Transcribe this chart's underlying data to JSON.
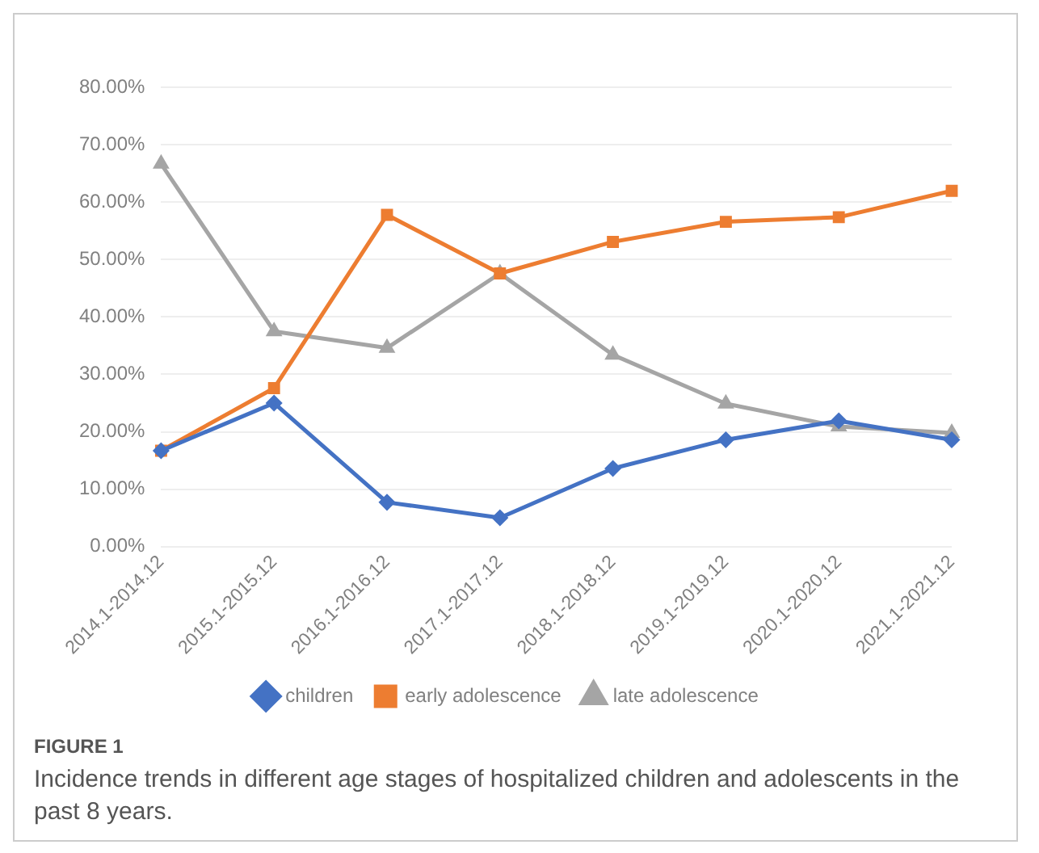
{
  "chart_data": {
    "type": "line",
    "categories": [
      "2014.1-2014.12",
      "2015.1-2015.12",
      "2016.1-2016.12",
      "2017.1-2017.12",
      "2018.1-2018.12",
      "2019.1-2019.12",
      "2020.1-2020.12",
      "2021.1-2021.12"
    ],
    "series": [
      {
        "name": "children",
        "color": "#4472c4",
        "marker": "diamond",
        "values": [
          16.7,
          25.0,
          7.7,
          5.0,
          13.6,
          18.6,
          21.9,
          18.6
        ]
      },
      {
        "name": "early adolescence",
        "color": "#ed7d31",
        "marker": "square",
        "values": [
          16.7,
          27.6,
          57.8,
          47.6,
          53.1,
          56.6,
          57.4,
          62.0
        ]
      },
      {
        "name": "late adolescence",
        "color": "#a5a5a5",
        "marker": "triangle",
        "values": [
          66.7,
          37.5,
          34.6,
          47.6,
          33.4,
          24.9,
          20.9,
          19.8
        ]
      }
    ],
    "ylim": [
      0,
      80
    ],
    "yticks": [
      {
        "value": 0,
        "label": "0.00%"
      },
      {
        "value": 10,
        "label": "10.00%"
      },
      {
        "value": 20,
        "label": "20.00%"
      },
      {
        "value": 30,
        "label": "30.00%"
      },
      {
        "value": 40,
        "label": "40.00%"
      },
      {
        "value": 50,
        "label": "50.00%"
      },
      {
        "value": 60,
        "label": "60.00%"
      },
      {
        "value": 70,
        "label": "70.00%"
      },
      {
        "value": 80,
        "label": "80.00%"
      }
    ],
    "grid": "y",
    "legend": "bottom",
    "line_style": "solid",
    "annotations": [
      "FIGURE 1",
      "Incidence trends in different age stages of hospitalized children and adolescents in the past 8 years."
    ]
  }
}
